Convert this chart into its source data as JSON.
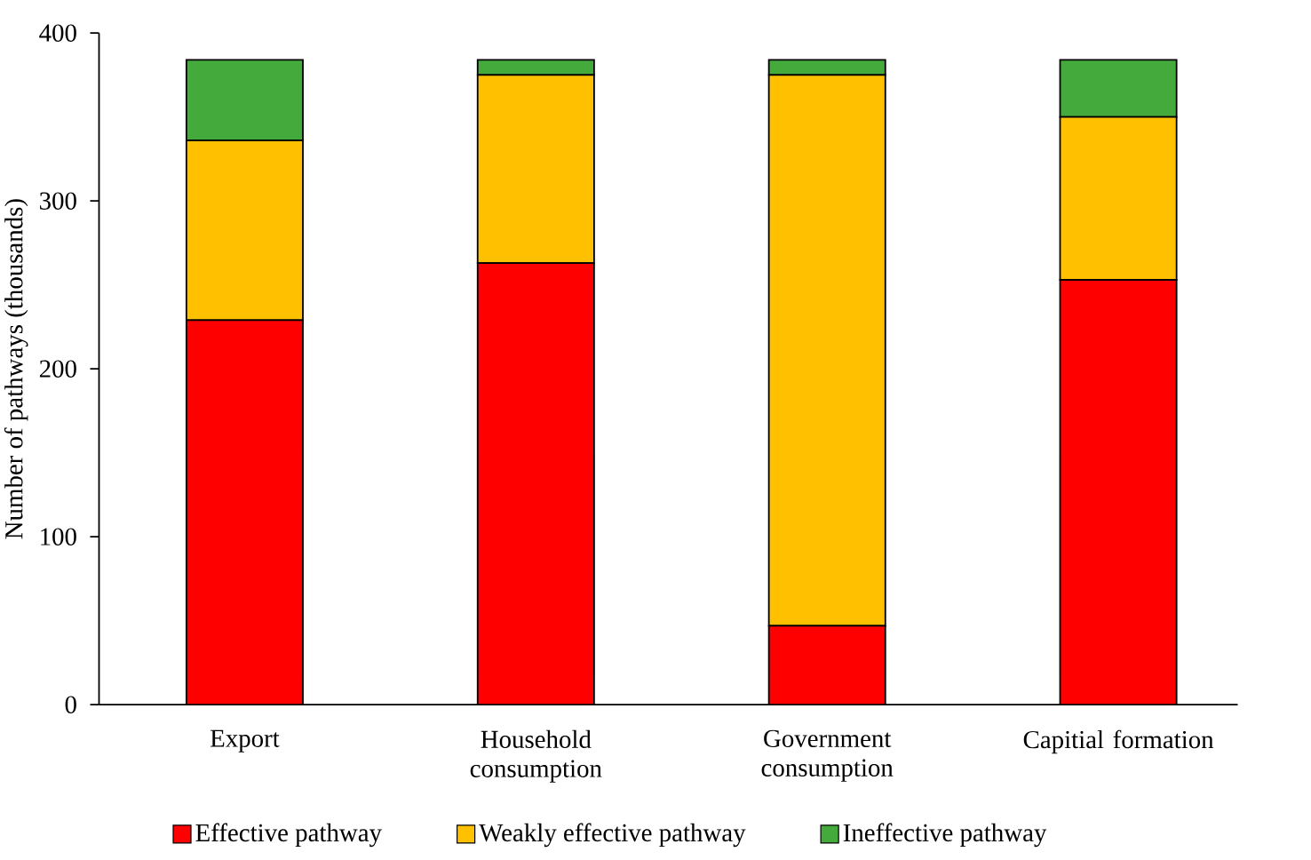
{
  "chart_data": {
    "type": "bar",
    "stacked": true,
    "ylabel": "Number of pathways (thousands)",
    "categories": [
      "Export",
      "Household consumption",
      "Government consumption",
      "Capitial formation"
    ],
    "series": [
      {
        "name": "Effective pathway",
        "color": "#ff0000",
        "values": [
          229,
          263,
          47,
          253
        ]
      },
      {
        "name": "Weakly effective pathway",
        "color": "#ffc000",
        "values": [
          107,
          112,
          328,
          97
        ]
      },
      {
        "name": "Ineffective pathway",
        "color": "#44aa3c",
        "values": [
          48,
          9,
          9,
          34
        ]
      }
    ],
    "ylim": [
      0,
      400
    ],
    "yticks": [
      0,
      100,
      200,
      300,
      400
    ],
    "grid": false,
    "legend": "bottom"
  }
}
